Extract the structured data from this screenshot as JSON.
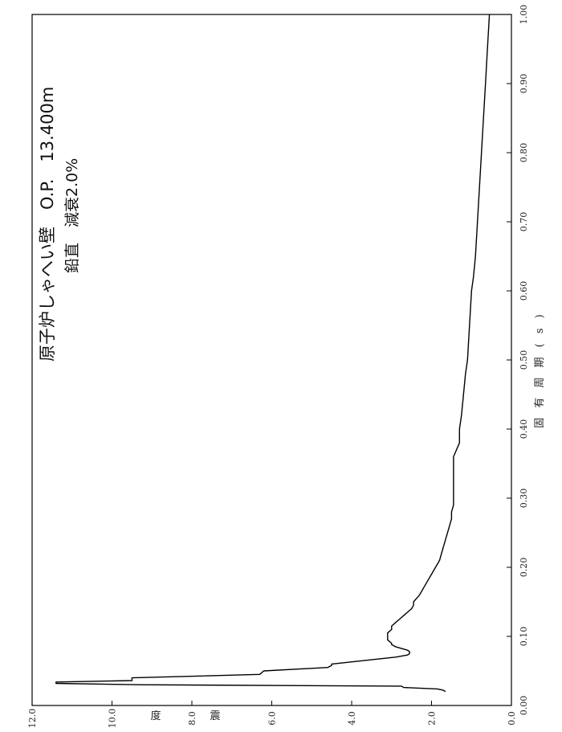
{
  "chart_data": {
    "type": "line",
    "title": "原子炉しゃへい壁　O.P.　13.400m",
    "subtitle": "鉛直　減衰2.0%",
    "xlabel": "固 有 周 期 ( s )",
    "ylabel_chars": [
      "震",
      "度"
    ],
    "xlim": [
      0.0,
      1.0
    ],
    "ylim": [
      0.0,
      12.0
    ],
    "x_ticks": [
      "0.00",
      "0.10",
      "0.20",
      "0.30",
      "0.40",
      "0.50",
      "0.60",
      "0.70",
      "0.80",
      "0.90",
      "1.00"
    ],
    "y_ticks": [
      "0.0",
      "2.0",
      "4.0",
      "6.0",
      "8.0",
      "10.0",
      "12.0"
    ],
    "rotated": "figure rotated 90 degrees counter-clockwise",
    "line_color": "#000000",
    "series": [
      {
        "x": [
          0.02,
          0.022,
          0.024,
          0.026,
          0.028,
          0.03,
          0.032,
          0.034,
          0.036,
          0.038,
          0.04,
          0.045,
          0.05,
          0.055,
          0.058,
          0.06,
          0.07,
          0.073,
          0.075,
          0.078,
          0.08,
          0.085,
          0.088,
          0.09,
          0.095,
          0.1,
          0.105,
          0.11,
          0.115,
          0.12,
          0.125,
          0.13,
          0.135,
          0.14,
          0.145,
          0.15,
          0.16,
          0.17,
          0.18,
          0.19,
          0.2,
          0.21,
          0.22,
          0.23,
          0.24,
          0.25,
          0.26,
          0.27,
          0.28,
          0.29,
          0.3,
          0.32,
          0.34,
          0.36,
          0.38,
          0.4,
          0.42,
          0.45,
          0.48,
          0.5,
          0.55,
          0.6,
          0.62,
          0.65,
          0.7,
          0.75,
          0.8,
          0.85,
          0.9,
          0.95,
          1.0
        ],
        "y": [
          1.65,
          1.7,
          1.85,
          2.7,
          2.75,
          9.3,
          11.4,
          11.4,
          9.5,
          9.5,
          9.5,
          6.3,
          6.2,
          4.6,
          4.5,
          4.5,
          2.9,
          2.6,
          2.55,
          2.55,
          2.6,
          2.9,
          3.0,
          3.0,
          3.1,
          3.1,
          3.1,
          3.0,
          3.0,
          2.9,
          2.8,
          2.7,
          2.6,
          2.5,
          2.45,
          2.45,
          2.3,
          2.2,
          2.1,
          2.0,
          1.9,
          1.8,
          1.75,
          1.7,
          1.65,
          1.6,
          1.55,
          1.5,
          1.5,
          1.45,
          1.45,
          1.45,
          1.45,
          1.45,
          1.3,
          1.3,
          1.25,
          1.2,
          1.15,
          1.1,
          1.05,
          1.0,
          0.95,
          0.9,
          0.85,
          0.8,
          0.75,
          0.7,
          0.65,
          0.6,
          0.55
        ]
      }
    ]
  }
}
